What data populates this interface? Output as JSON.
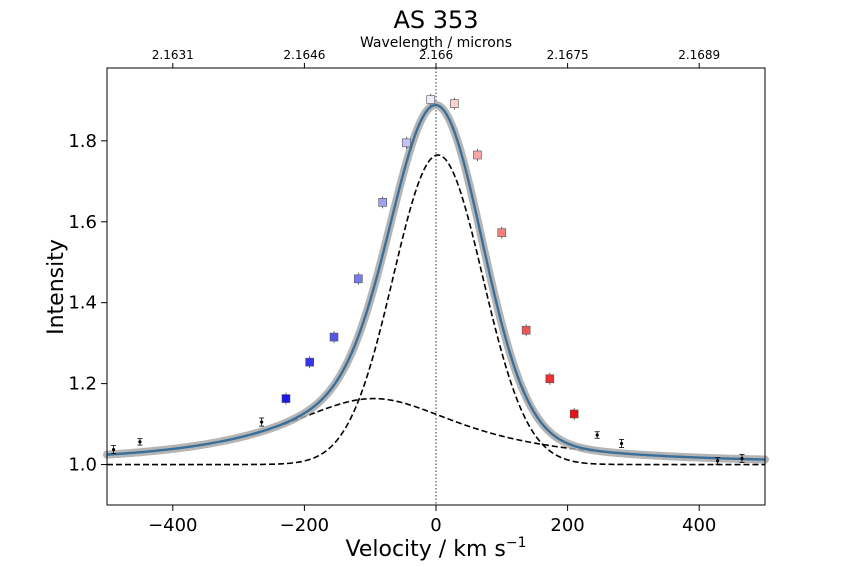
{
  "chart_data": {
    "type": "scatter",
    "title": "AS 353",
    "xlabel": "Velocity / km s",
    "xlabel_sup": "−1",
    "ylabel": "Intensity",
    "top_xlabel": "Wavelength / microns",
    "xlim": [
      -500,
      500
    ],
    "ylim": [
      0.9,
      1.98
    ],
    "x_ticks": [
      -400,
      -200,
      0,
      200,
      400
    ],
    "x_tick_labels": [
      "−400",
      "−200",
      "0",
      "200",
      "400"
    ],
    "y_ticks": [
      1.0,
      1.2,
      1.4,
      1.6,
      1.8
    ],
    "y_tick_labels": [
      "1.0",
      "1.2",
      "1.4",
      "1.6",
      "1.8"
    ],
    "top_ticks": [
      -400,
      -200,
      0,
      200,
      400
    ],
    "top_tick_labels": [
      "2.1631",
      "2.1646",
      "2.166",
      "2.1675",
      "2.1689"
    ],
    "grid": false,
    "vertical_line_x": 0,
    "colors": {
      "fit": "#3a6f9a",
      "fit_band": "#a8a8a8",
      "component": "#000000",
      "blue": "#1010e0",
      "red": "#e81010"
    },
    "fit_model": {
      "baseline": 1.0,
      "narrow": {
        "amp": 0.765,
        "center": 3,
        "sigma": 68
      },
      "broad": {
        "amp": 0.163,
        "center": -95,
        "gamma": 170
      }
    },
    "colored_points": [
      {
        "x": -228,
        "y": 1.163,
        "color": "#1a1ae6"
      },
      {
        "x": -192,
        "y": 1.253,
        "color": "#3535e6"
      },
      {
        "x": -155,
        "y": 1.315,
        "color": "#5555e8"
      },
      {
        "x": -118,
        "y": 1.459,
        "color": "#7a7aee"
      },
      {
        "x": -81,
        "y": 1.648,
        "color": "#a0a0f3"
      },
      {
        "x": -45,
        "y": 1.795,
        "color": "#c2c2f6"
      },
      {
        "x": -8,
        "y": 1.902,
        "color": "#ececfa"
      },
      {
        "x": 28,
        "y": 1.892,
        "color": "#fbd0d0"
      },
      {
        "x": 63,
        "y": 1.765,
        "color": "#f9a5a5"
      },
      {
        "x": 100,
        "y": 1.573,
        "color": "#f48080"
      },
      {
        "x": 137,
        "y": 1.332,
        "color": "#ee5555"
      },
      {
        "x": 173,
        "y": 1.212,
        "color": "#ea3030"
      },
      {
        "x": 210,
        "y": 1.125,
        "color": "#e81010"
      }
    ],
    "black_points": [
      {
        "x": -490,
        "y": 1.037,
        "err": 0.01
      },
      {
        "x": -450,
        "y": 1.056,
        "err": 0.008
      },
      {
        "x": -265,
        "y": 1.105,
        "err": 0.01
      },
      {
        "x": 245,
        "y": 1.073,
        "err": 0.008
      },
      {
        "x": 282,
        "y": 1.052,
        "err": 0.01
      },
      {
        "x": 428,
        "y": 1.009,
        "err": 0.008
      },
      {
        "x": 465,
        "y": 1.015,
        "err": 0.01
      }
    ]
  }
}
